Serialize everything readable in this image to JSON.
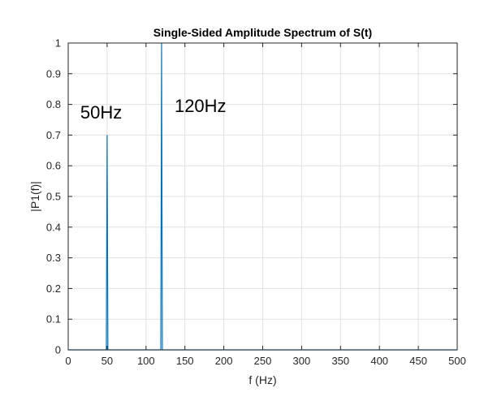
{
  "chart_data": {
    "type": "line",
    "title": "Single-Sided Amplitude Spectrum of S(t)",
    "xlabel": "f (Hz)",
    "ylabel": "|P1(f)|",
    "xlim": [
      0,
      500
    ],
    "ylim": [
      0,
      1
    ],
    "xticks": [
      0,
      50,
      100,
      150,
      200,
      250,
      300,
      350,
      400,
      450,
      500
    ],
    "yticks": [
      0,
      0.1,
      0.2,
      0.3,
      0.4,
      0.5,
      0.6,
      0.7,
      0.8,
      0.9,
      1
    ],
    "grid": true,
    "line_color": "#0072BD",
    "series": [
      {
        "x": [
          0,
          49,
          50,
          51,
          119,
          120,
          121,
          500
        ],
        "values": [
          0,
          0,
          0.7,
          0,
          0,
          1.0,
          0,
          0
        ]
      }
    ],
    "annotations": [
      {
        "text": "50Hz",
        "x": 50,
        "y": 0.7
      },
      {
        "text": "120Hz",
        "x": 120,
        "y": 1.0
      }
    ]
  }
}
